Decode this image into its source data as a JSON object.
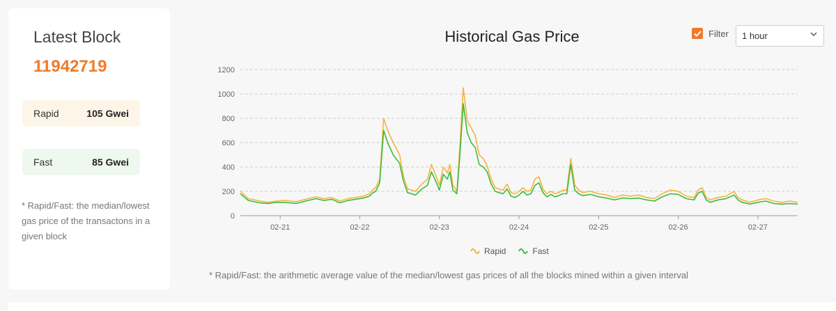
{
  "latest_block": {
    "title": "Latest Block",
    "number": "11942719",
    "rapid": {
      "label": "Rapid",
      "value": "105 Gwei"
    },
    "fast": {
      "label": "Fast",
      "value": "85 Gwei"
    },
    "note": "* Rapid/Fast: the median/lowest gas price of the transactons in a given block"
  },
  "header": {
    "title": "Historical Gas Price",
    "filter_label": "Filter",
    "interval_selected": "1 hour"
  },
  "footer_note": "* Rapid/Fast: the arithmetic average value of the median/lowest gas prices of all the blocks mined within a given interval",
  "colors": {
    "accent": "#f07a2a",
    "rapid": "#f5b43a",
    "fast": "#3dbb3d",
    "grid": "#cccccc"
  },
  "icons": {
    "checkbox": "check-icon",
    "select": "chevron-down-icon"
  },
  "chart_data": {
    "type": "line",
    "title": "Historical Gas Price",
    "ylim": [
      0,
      1200
    ],
    "yticks": [
      0,
      200,
      400,
      600,
      800,
      1000,
      1200
    ],
    "xlim": [
      0,
      7
    ],
    "x_ticks": [
      {
        "x": 0.5,
        "label": "02-21"
      },
      {
        "x": 1.5,
        "label": "02-22"
      },
      {
        "x": 2.5,
        "label": "02-23"
      },
      {
        "x": 3.5,
        "label": "02-24"
      },
      {
        "x": 4.5,
        "label": "02-25"
      },
      {
        "x": 5.5,
        "label": "02-26"
      },
      {
        "x": 6.5,
        "label": "02-27"
      }
    ],
    "legend_position": "bottom",
    "grid": true,
    "series": [
      {
        "name": "Rapid",
        "points": [
          [
            0,
            200
          ],
          [
            0.1,
            140
          ],
          [
            0.25,
            120
          ],
          [
            0.35,
            110
          ],
          [
            0.45,
            120
          ],
          [
            0.55,
            125
          ],
          [
            0.7,
            115
          ],
          [
            0.85,
            140
          ],
          [
            0.95,
            155
          ],
          [
            1.05,
            140
          ],
          [
            1.15,
            150
          ],
          [
            1.25,
            120
          ],
          [
            1.35,
            140
          ],
          [
            1.45,
            150
          ],
          [
            1.55,
            160
          ],
          [
            1.62,
            180
          ],
          [
            1.66,
            210
          ],
          [
            1.7,
            230
          ],
          [
            1.75,
            300
          ],
          [
            1.8,
            800
          ],
          [
            1.85,
            700
          ],
          [
            1.92,
            600
          ],
          [
            2.0,
            500
          ],
          [
            2.05,
            320
          ],
          [
            2.1,
            220
          ],
          [
            2.2,
            200
          ],
          [
            2.28,
            260
          ],
          [
            2.35,
            300
          ],
          [
            2.4,
            420
          ],
          [
            2.45,
            340
          ],
          [
            2.5,
            250
          ],
          [
            2.55,
            400
          ],
          [
            2.6,
            350
          ],
          [
            2.63,
            420
          ],
          [
            2.67,
            250
          ],
          [
            2.72,
            200
          ],
          [
            2.76,
            600
          ],
          [
            2.8,
            1050
          ],
          [
            2.85,
            780
          ],
          [
            2.9,
            720
          ],
          [
            2.95,
            660
          ],
          [
            3.0,
            500
          ],
          [
            3.05,
            470
          ],
          [
            3.1,
            410
          ],
          [
            3.15,
            300
          ],
          [
            3.2,
            230
          ],
          [
            3.25,
            220
          ],
          [
            3.3,
            210
          ],
          [
            3.35,
            260
          ],
          [
            3.4,
            190
          ],
          [
            3.45,
            180
          ],
          [
            3.5,
            200
          ],
          [
            3.55,
            230
          ],
          [
            3.6,
            200
          ],
          [
            3.65,
            210
          ],
          [
            3.7,
            300
          ],
          [
            3.75,
            320
          ],
          [
            3.8,
            220
          ],
          [
            3.85,
            180
          ],
          [
            3.9,
            200
          ],
          [
            3.95,
            180
          ],
          [
            4.0,
            190
          ],
          [
            4.05,
            210
          ],
          [
            4.1,
            210
          ],
          [
            4.15,
            470
          ],
          [
            4.2,
            250
          ],
          [
            4.25,
            210
          ],
          [
            4.3,
            190
          ],
          [
            4.4,
            200
          ],
          [
            4.5,
            180
          ],
          [
            4.6,
            170
          ],
          [
            4.7,
            150
          ],
          [
            4.8,
            170
          ],
          [
            4.9,
            160
          ],
          [
            5.0,
            170
          ],
          [
            5.1,
            150
          ],
          [
            5.2,
            140
          ],
          [
            5.3,
            180
          ],
          [
            5.4,
            210
          ],
          [
            5.5,
            200
          ],
          [
            5.6,
            160
          ],
          [
            5.7,
            150
          ],
          [
            5.75,
            210
          ],
          [
            5.8,
            230
          ],
          [
            5.85,
            150
          ],
          [
            5.9,
            130
          ],
          [
            6.0,
            150
          ],
          [
            6.1,
            160
          ],
          [
            6.2,
            200
          ],
          [
            6.25,
            150
          ],
          [
            6.3,
            130
          ],
          [
            6.4,
            110
          ],
          [
            6.5,
            130
          ],
          [
            6.6,
            140
          ],
          [
            6.7,
            120
          ],
          [
            6.8,
            110
          ],
          [
            6.9,
            120
          ],
          [
            7.0,
            110
          ]
        ]
      },
      {
        "name": "Fast",
        "points": [
          [
            0,
            180
          ],
          [
            0.1,
            125
          ],
          [
            0.25,
            105
          ],
          [
            0.35,
            100
          ],
          [
            0.45,
            110
          ],
          [
            0.55,
            110
          ],
          [
            0.7,
            100
          ],
          [
            0.85,
            125
          ],
          [
            0.95,
            140
          ],
          [
            1.05,
            125
          ],
          [
            1.15,
            135
          ],
          [
            1.25,
            105
          ],
          [
            1.35,
            125
          ],
          [
            1.45,
            135
          ],
          [
            1.55,
            145
          ],
          [
            1.62,
            160
          ],
          [
            1.66,
            185
          ],
          [
            1.7,
            200
          ],
          [
            1.75,
            270
          ],
          [
            1.8,
            700
          ],
          [
            1.85,
            600
          ],
          [
            1.92,
            500
          ],
          [
            2.0,
            430
          ],
          [
            2.05,
            280
          ],
          [
            2.1,
            190
          ],
          [
            2.2,
            170
          ],
          [
            2.28,
            220
          ],
          [
            2.35,
            250
          ],
          [
            2.4,
            360
          ],
          [
            2.45,
            290
          ],
          [
            2.5,
            210
          ],
          [
            2.55,
            340
          ],
          [
            2.6,
            300
          ],
          [
            2.63,
            360
          ],
          [
            2.67,
            210
          ],
          [
            2.72,
            180
          ],
          [
            2.76,
            520
          ],
          [
            2.8,
            920
          ],
          [
            2.85,
            680
          ],
          [
            2.9,
            600
          ],
          [
            2.95,
            560
          ],
          [
            3.0,
            420
          ],
          [
            3.05,
            400
          ],
          [
            3.1,
            360
          ],
          [
            3.15,
            260
          ],
          [
            3.2,
            200
          ],
          [
            3.25,
            190
          ],
          [
            3.3,
            180
          ],
          [
            3.35,
            220
          ],
          [
            3.4,
            160
          ],
          [
            3.45,
            150
          ],
          [
            3.5,
            170
          ],
          [
            3.55,
            200
          ],
          [
            3.6,
            170
          ],
          [
            3.65,
            180
          ],
          [
            3.7,
            250
          ],
          [
            3.75,
            270
          ],
          [
            3.8,
            190
          ],
          [
            3.85,
            155
          ],
          [
            3.9,
            175
          ],
          [
            3.95,
            155
          ],
          [
            4.0,
            165
          ],
          [
            4.05,
            180
          ],
          [
            4.1,
            180
          ],
          [
            4.15,
            420
          ],
          [
            4.2,
            210
          ],
          [
            4.25,
            180
          ],
          [
            4.3,
            165
          ],
          [
            4.4,
            175
          ],
          [
            4.5,
            155
          ],
          [
            4.6,
            145
          ],
          [
            4.7,
            130
          ],
          [
            4.8,
            145
          ],
          [
            4.9,
            140
          ],
          [
            5.0,
            145
          ],
          [
            5.1,
            130
          ],
          [
            5.2,
            120
          ],
          [
            5.3,
            155
          ],
          [
            5.4,
            180
          ],
          [
            5.5,
            175
          ],
          [
            5.6,
            140
          ],
          [
            5.7,
            130
          ],
          [
            5.75,
            185
          ],
          [
            5.8,
            200
          ],
          [
            5.85,
            130
          ],
          [
            5.9,
            110
          ],
          [
            6.0,
            130
          ],
          [
            6.1,
            140
          ],
          [
            6.2,
            170
          ],
          [
            6.25,
            130
          ],
          [
            6.3,
            110
          ],
          [
            6.4,
            95
          ],
          [
            6.5,
            110
          ],
          [
            6.6,
            120
          ],
          [
            6.7,
            100
          ],
          [
            6.8,
            95
          ],
          [
            6.9,
            100
          ],
          [
            7.0,
            95
          ]
        ]
      }
    ]
  }
}
